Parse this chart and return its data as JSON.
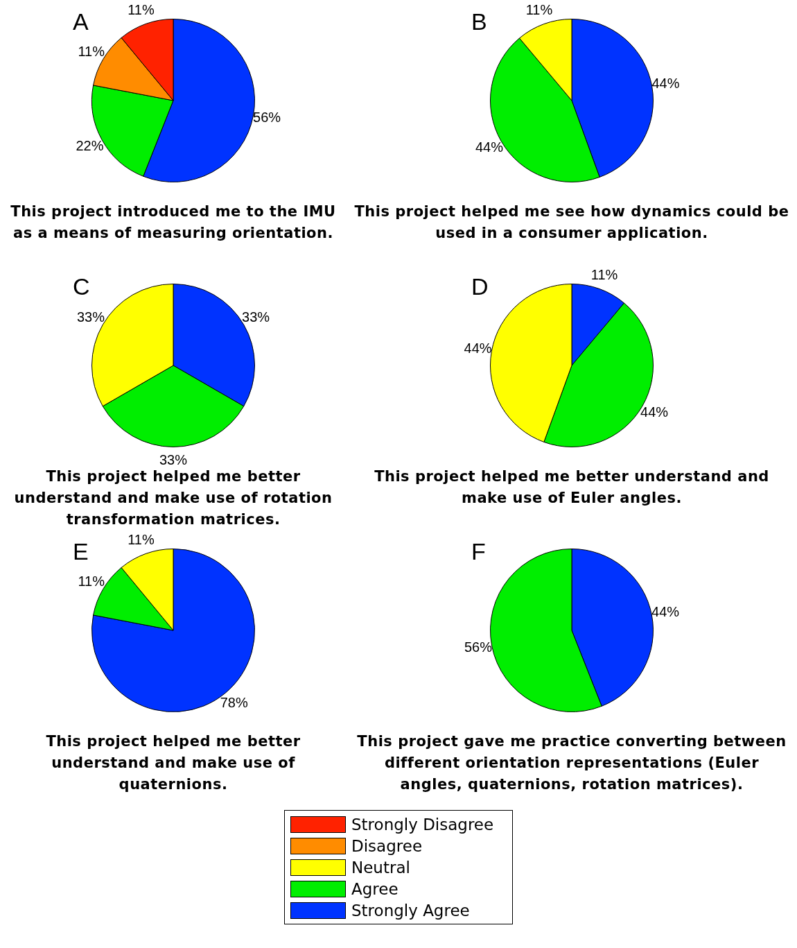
{
  "chart_data": [
    {
      "type": "pie",
      "title": "A",
      "subtitle": "This project introduced me to the IMU as a means of measuring orientation.",
      "categories": [
        "Strongly Disagree",
        "Disagree",
        "Neutral",
        "Agree",
        "Strongly Agree"
      ],
      "values": [
        11,
        11,
        0,
        22,
        56
      ],
      "value_labels": [
        "11%",
        "11%",
        null,
        "22%",
        "56%"
      ],
      "colors": [
        "#ff2200",
        "#ff8c00",
        "#ffff00",
        "#00ee00",
        "#0033ff"
      ],
      "legend": "bottom"
    },
    {
      "type": "pie",
      "title": "B",
      "subtitle": "This project helped me see how dynamics could be used in a consumer application.",
      "categories": [
        null,
        null,
        null,
        null,
        null
      ],
      "values": [
        0,
        0,
        11,
        44,
        44
      ],
      "value_labels": [
        null,
        null,
        "11%",
        "44%",
        "44%"
      ],
      "colors": [
        "#ff2200",
        "#ff8c00",
        "#ffff00",
        "#00ee00",
        "#0033ff"
      ]
    },
    {
      "type": "pie",
      "title": "C",
      "subtitle": "This project helped me better understand and make use of rotation transformation matrices.",
      "categories": [
        null,
        null,
        null,
        null,
        null
      ],
      "values": [
        0,
        0,
        33,
        33,
        33
      ],
      "value_labels": [
        null,
        null,
        "33%",
        "33%",
        "33%"
      ],
      "colors": [
        "#ff2200",
        "#ff8c00",
        "#ffff00",
        "#00ee00",
        "#0033ff"
      ]
    },
    {
      "type": "pie",
      "title": "D",
      "subtitle": "This project helped me better understand and make use of Euler angles.",
      "categories": [
        null,
        null,
        null,
        null,
        null
      ],
      "values": [
        0,
        0,
        44,
        44,
        11
      ],
      "value_labels": [
        null,
        null,
        "44%",
        "44%",
        "11%"
      ],
      "colors": [
        "#ff2200",
        "#ff8c00",
        "#ffff00",
        "#00ee00",
        "#0033ff"
      ]
    },
    {
      "type": "pie",
      "title": "E",
      "subtitle": "This project helped me better understand and make use of quaternions.",
      "categories": [
        null,
        null,
        null,
        null,
        null
      ],
      "values": [
        0,
        0,
        11,
        11,
        78
      ],
      "value_labels": [
        null,
        null,
        "11%",
        "11%",
        "78%"
      ],
      "colors": [
        "#ff2200",
        "#ff8c00",
        "#ffff00",
        "#00ee00",
        "#0033ff"
      ]
    },
    {
      "type": "pie",
      "title": "F",
      "subtitle": "This project gave me practice converting between different orientation representations (Euler angles, quaternions, rotation matrices).",
      "categories": [
        null,
        null,
        null,
        null,
        null
      ],
      "values": [
        0,
        0,
        0,
        56,
        44
      ],
      "value_labels": [
        null,
        null,
        null,
        "56%",
        "44%"
      ],
      "colors": [
        "#ff2200",
        "#ff8c00",
        "#ffff00",
        "#00ee00",
        "#0033ff"
      ]
    }
  ]
}
